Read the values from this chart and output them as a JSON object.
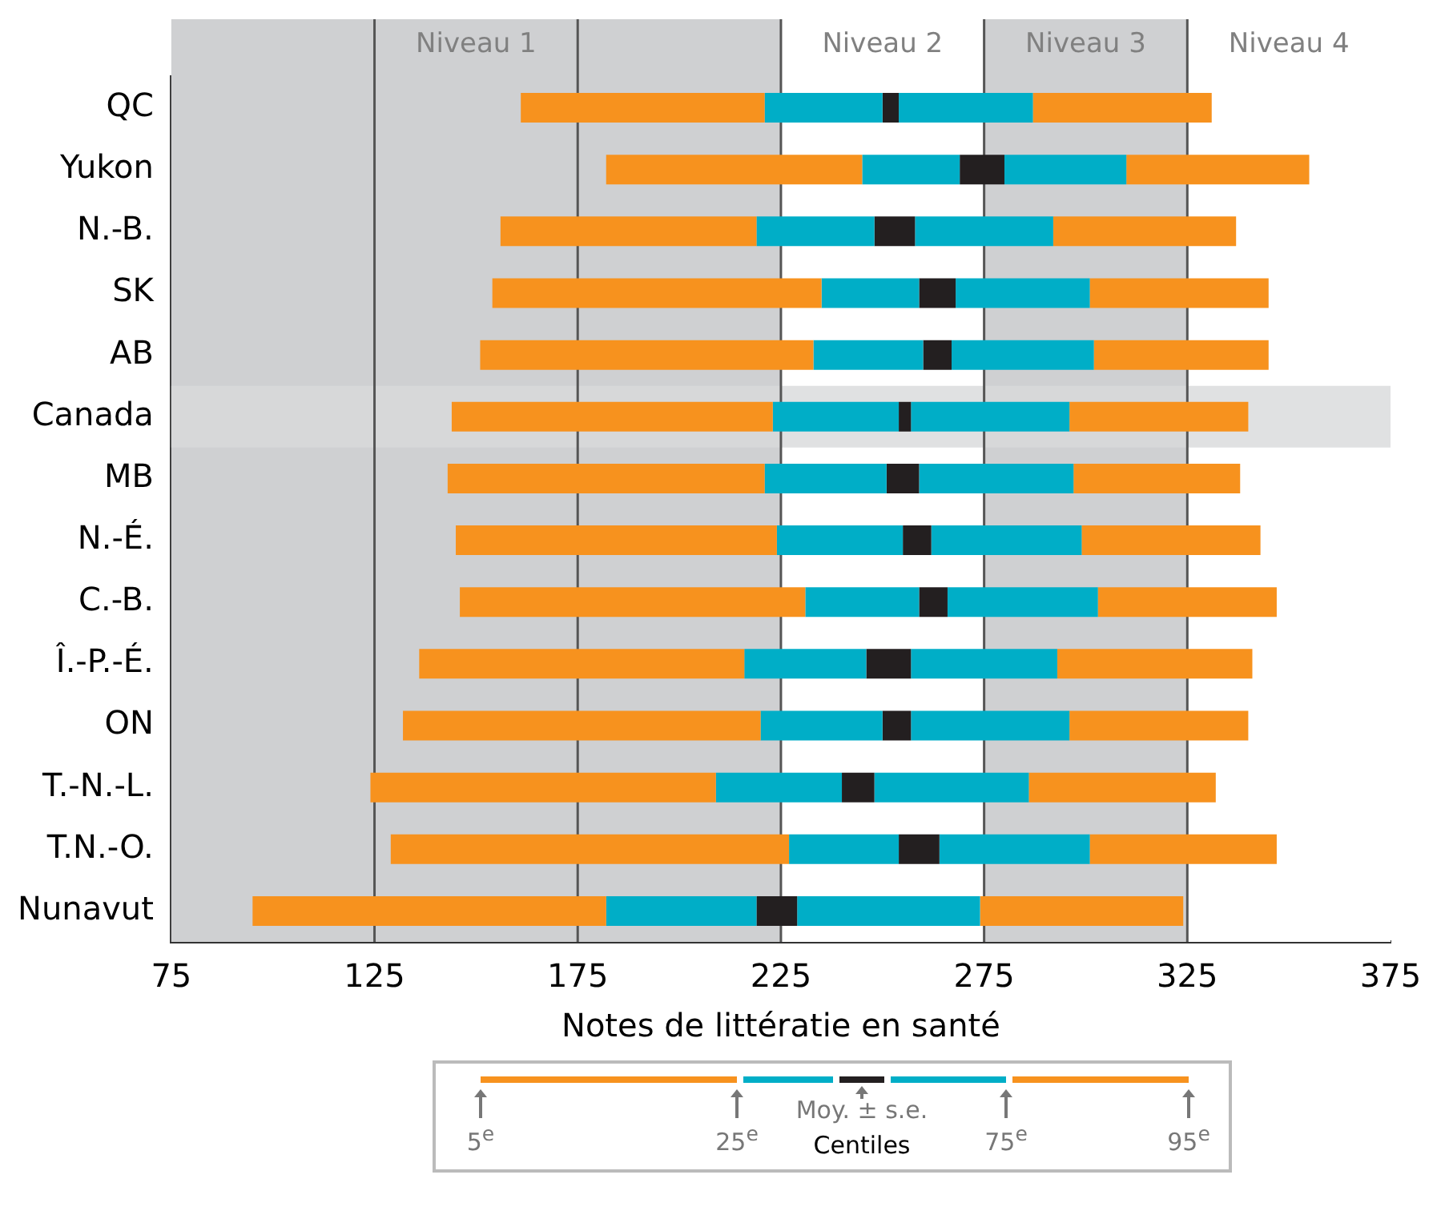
{
  "chart_data": {
    "type": "bar",
    "orientation": "horizontal",
    "xlabel": "Notes de littératie en santé",
    "categories": [
      "QC",
      "Yukon",
      "N.-B.",
      "SK",
      "AB",
      "Canada",
      "MB",
      "N.-É.",
      "C.-B.",
      "Î.-P.-É.",
      "ON",
      "T.-N.-L.",
      "T.N.-O.",
      "Nunavut"
    ],
    "series": [
      {
        "color": "#f7921e",
        "base": [
          161,
          182,
          156,
          154,
          151,
          144,
          143,
          145,
          146,
          136,
          132,
          124,
          129,
          95
        ],
        "values": [
          60,
          63,
          63,
          81,
          82,
          79,
          78,
          79,
          85,
          80,
          88,
          85,
          98,
          87
        ]
      },
      {
        "color": "#00aec7",
        "base": [
          221,
          245,
          219,
          235,
          233,
          223,
          221,
          224,
          231,
          216,
          220,
          209,
          227,
          182
        ],
        "values": [
          29,
          24,
          29,
          24,
          27,
          31,
          30,
          31,
          28,
          30,
          30,
          31,
          27,
          37
        ]
      },
      {
        "color": "#231f20",
        "base": [
          250,
          269,
          248,
          259,
          260,
          254,
          251,
          255,
          259,
          246,
          250,
          240,
          254,
          219
        ],
        "values": [
          4,
          11,
          10,
          9,
          7,
          3,
          8,
          7,
          7,
          11,
          7,
          8,
          10,
          10
        ]
      },
      {
        "color": "#00aec7",
        "base": [
          254,
          280,
          258,
          268,
          267,
          257,
          259,
          262,
          266,
          257,
          257,
          248,
          264,
          229
        ],
        "values": [
          33,
          30,
          34,
          33,
          35,
          39,
          38,
          37,
          37,
          36,
          39,
          38,
          37,
          45
        ]
      },
      {
        "color": "#f7921e",
        "base": [
          287,
          310,
          292,
          301,
          302,
          296,
          297,
          299,
          303,
          293,
          296,
          286,
          301,
          274
        ],
        "values": [
          44,
          45,
          45,
          44,
          43,
          44,
          41,
          44,
          44,
          48,
          44,
          46,
          46,
          50
        ]
      }
    ],
    "xlim": [
      75,
      375
    ],
    "xticks": [
      75,
      125,
      175,
      225,
      275,
      325,
      375
    ],
    "grid": "x",
    "bands": [
      {
        "axis": "x",
        "from": 75,
        "to": 225,
        "label": "Niveau 1",
        "color": "#cfd0d2"
      },
      {
        "axis": "x",
        "from": 225,
        "to": 275,
        "label": "Niveau 2",
        "color": "#ffffff"
      },
      {
        "axis": "x",
        "from": 275,
        "to": 325,
        "label": "Niveau 3",
        "color": "#cfd0d2"
      },
      {
        "axis": "x",
        "from": 325,
        "to": 375,
        "label": "Niveau 4",
        "color": "#ffffff"
      },
      {
        "axis": "y",
        "from": "Canada",
        "to": "Canada",
        "color": "#d8d9db"
      }
    ],
    "annotations": [
      "5$^{e}$",
      "25$^{e}$",
      "Moy. ± s.e.",
      "75$^{e}$",
      "95$^{e}$",
      "Centiles"
    ]
  }
}
